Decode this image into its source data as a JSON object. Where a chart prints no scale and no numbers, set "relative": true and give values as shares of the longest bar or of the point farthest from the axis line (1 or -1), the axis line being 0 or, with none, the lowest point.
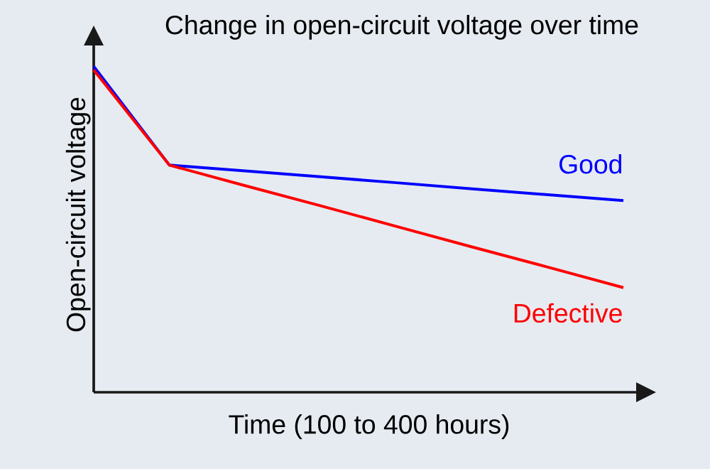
{
  "chart_data": {
    "type": "line",
    "title": "Change in open-circuit voltage over time",
    "xlabel": "Time (100 to 400 hours)",
    "ylabel": "Open-circuit voltage",
    "relative": true,
    "legend": false,
    "categories": [
      null,
      null,
      null,
      null,
      null,
      null,
      null,
      null
    ],
    "series": [
      {
        "name": "Good",
        "color": "#0000ff",
        "values": [
          1,
          0.697,
          0.679,
          0.661,
          0.643,
          0.624,
          0.606,
          0.588
        ]
      },
      {
        "name": "Defective",
        "color": "#ff0000",
        "values": [
          0.989,
          0.697,
          0.634,
          0.572,
          0.509,
          0.446,
          0.384,
          0.321
        ]
      }
    ]
  }
}
